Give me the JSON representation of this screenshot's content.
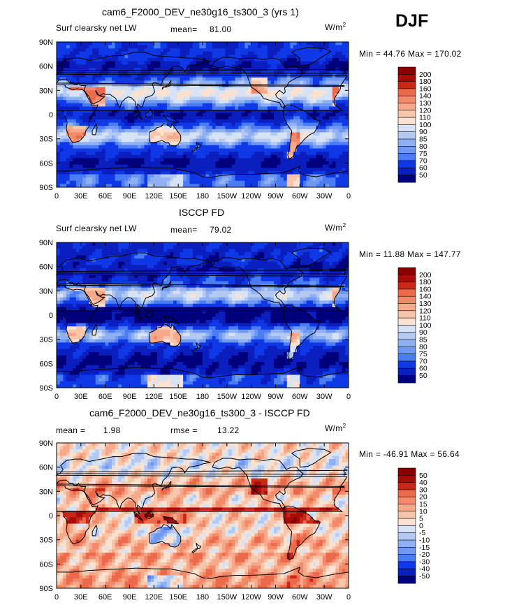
{
  "season": "DJF",
  "colors": {
    "scale": [
      "#00007d",
      "#0b1fbf",
      "#0f38e6",
      "#2a5ef2",
      "#4a7df5",
      "#6e98f2",
      "#8fb0f2",
      "#b4c9f2",
      "#d6e2f5",
      "#f3f3f3",
      "#fbe1d0",
      "#f7c6aa",
      "#f5a98a",
      "#f28a6a",
      "#ec6a4c",
      "#e04834",
      "#c92818",
      "#a80c08",
      "#8a0000"
    ],
    "land_outline": "#000000"
  },
  "chart_data": [
    {
      "type": "heatmap",
      "title": "cam6_F2000_DEV_ne30g16_ts300_3 (yrs 1)",
      "variable": "Surf clearsky net LW",
      "units_text": "W/m",
      "units_exp": "2",
      "stat_left": "mean=",
      "stat_left_value": "81.00",
      "min_max": "Min =  44.76 Max = 170.02",
      "min": 44.76,
      "max": 170.02,
      "mean": 81.0,
      "colorbar_levels": [
        "200",
        "180",
        "160",
        "140",
        "130",
        "120",
        "110",
        "100",
        "90",
        "85",
        "80",
        "75",
        "70",
        "60",
        "50"
      ],
      "x_ticks": [
        "0",
        "30E",
        "60E",
        "90E",
        "120E",
        "150E",
        "180",
        "150W",
        "120W",
        "90W",
        "60W",
        "30W",
        "0"
      ],
      "y_ticks": [
        "90N",
        "60N",
        "30N",
        "0",
        "30S",
        "60S",
        "90S"
      ]
    },
    {
      "type": "heatmap",
      "title": "ISCCP FD",
      "variable": "Surf clearsky net LW",
      "units_text": "W/m",
      "units_exp": "2",
      "stat_left": "mean=",
      "stat_left_value": "79.02",
      "min_max": "Min =  11.88 Max = 147.77",
      "min": 11.88,
      "max": 147.77,
      "mean": 79.02,
      "colorbar_levels": [
        "200",
        "180",
        "160",
        "140",
        "130",
        "120",
        "110",
        "100",
        "90",
        "85",
        "80",
        "75",
        "70",
        "60",
        "50"
      ],
      "x_ticks": [
        "0",
        "30E",
        "60E",
        "90E",
        "120E",
        "150E",
        "180",
        "150W",
        "120W",
        "90W",
        "60W",
        "30W",
        "0"
      ],
      "y_ticks": [
        "90N",
        "60N",
        "30N",
        "0",
        "30S",
        "60S",
        "90S"
      ]
    },
    {
      "type": "heatmap",
      "title": "cam6_F2000_DEV_ne30g16_ts300_3 - ISCCP FD",
      "stat_left": "mean =",
      "stat_left_value": "1.98",
      "stat_mid": "rmse =",
      "stat_mid_value": "13.22",
      "units_text": "W/m",
      "units_exp": "2",
      "min_max": "Min = -46.91 Max =  56.64",
      "min": -46.91,
      "max": 56.64,
      "mean": 1.98,
      "rmse": 13.22,
      "colorbar_levels": [
        "50",
        "40",
        "30",
        "20",
        "15",
        "10",
        "5",
        "0",
        "-5",
        "-10",
        "-15",
        "-20",
        "-30",
        "-40",
        "-50"
      ],
      "x_ticks": [
        "0",
        "30E",
        "60E",
        "90E",
        "120E",
        "150E",
        "180",
        "150W",
        "120W",
        "90W",
        "60W",
        "30W",
        "0"
      ],
      "y_ticks": [
        "90N",
        "60N",
        "30N",
        "0",
        "30S",
        "60S",
        "90S"
      ]
    }
  ]
}
